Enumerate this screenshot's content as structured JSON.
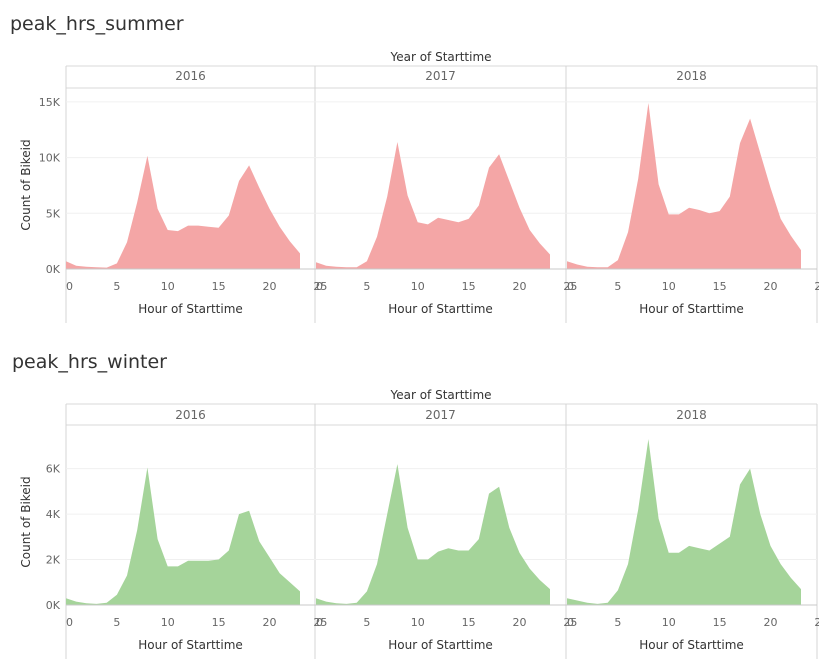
{
  "chart_data": [
    {
      "type": "area",
      "title": "peak_hrs_summer",
      "column_header": "Year of Starttime",
      "xlabel": "Hour of Starttime",
      "ylabel": "Count of Bikeid",
      "xlim": [
        0,
        25
      ],
      "ylim": [
        0,
        15800
      ],
      "x_ticks": [
        0,
        5,
        10,
        15,
        20,
        25
      ],
      "x_tick_labels": [
        "0",
        "5",
        "10",
        "15",
        "20",
        "25"
      ],
      "y_ticks": [
        0,
        5000,
        10000,
        15000
      ],
      "y_tick_labels": [
        "0K",
        "5K",
        "10K",
        "15K"
      ],
      "x": [
        0,
        1,
        2,
        3,
        4,
        5,
        6,
        7,
        8,
        9,
        10,
        11,
        12,
        13,
        14,
        15,
        16,
        17,
        18,
        19,
        20,
        21,
        22,
        23
      ],
      "color": "#f4a6a6",
      "panels": [
        {
          "label": "2016",
          "values": [
            700,
            300,
            200,
            150,
            130,
            500,
            2400,
            6000,
            10150,
            5400,
            3500,
            3400,
            3900,
            3900,
            3800,
            3700,
            4800,
            7900,
            9300,
            7300,
            5400,
            3800,
            2500,
            1400
          ]
        },
        {
          "label": "2017",
          "values": [
            600,
            300,
            200,
            150,
            150,
            700,
            2900,
            6500,
            11400,
            6600,
            4200,
            4000,
            4600,
            4400,
            4200,
            4500,
            5700,
            9100,
            10300,
            7900,
            5500,
            3500,
            2300,
            1300
          ]
        },
        {
          "label": "2018",
          "values": [
            700,
            400,
            200,
            150,
            150,
            800,
            3300,
            8100,
            14900,
            7600,
            4900,
            4900,
            5500,
            5300,
            5000,
            5200,
            6500,
            11300,
            13500,
            10400,
            7300,
            4500,
            3000,
            1700
          ]
        }
      ]
    },
    {
      "type": "area",
      "title": "peak_hrs_winter",
      "column_header": "Year of Starttime",
      "xlabel": "Hour of Starttime",
      "ylabel": "Count of Bikeid",
      "xlim": [
        0,
        25
      ],
      "ylim": [
        0,
        7700
      ],
      "x_ticks": [
        0,
        5,
        10,
        15,
        20,
        25
      ],
      "x_tick_labels": [
        "0",
        "5",
        "10",
        "15",
        "20",
        "25"
      ],
      "y_ticks": [
        0,
        2000,
        4000,
        6000
      ],
      "y_tick_labels": [
        "0K",
        "2K",
        "4K",
        "6K"
      ],
      "x": [
        0,
        1,
        2,
        3,
        4,
        5,
        6,
        7,
        8,
        9,
        10,
        11,
        12,
        13,
        14,
        15,
        16,
        17,
        18,
        19,
        20,
        21,
        22,
        23
      ],
      "color": "#a5d49a",
      "panels": [
        {
          "label": "2016",
          "values": [
            300,
            150,
            80,
            50,
            100,
            450,
            1300,
            3300,
            6050,
            2900,
            1700,
            1700,
            1950,
            1950,
            1950,
            2000,
            2400,
            4000,
            4150,
            2800,
            2100,
            1400,
            1000,
            600
          ]
        },
        {
          "label": "2017",
          "values": [
            300,
            150,
            80,
            50,
            100,
            600,
            1800,
            4000,
            6200,
            3400,
            2000,
            2000,
            2350,
            2500,
            2400,
            2400,
            2900,
            4900,
            5200,
            3400,
            2300,
            1600,
            1100,
            700
          ]
        },
        {
          "label": "2018",
          "values": [
            300,
            200,
            100,
            50,
            100,
            650,
            1800,
            4200,
            7300,
            3800,
            2300,
            2300,
            2600,
            2500,
            2400,
            2700,
            3000,
            5300,
            6000,
            4000,
            2600,
            1800,
            1200,
            700
          ]
        }
      ]
    }
  ]
}
